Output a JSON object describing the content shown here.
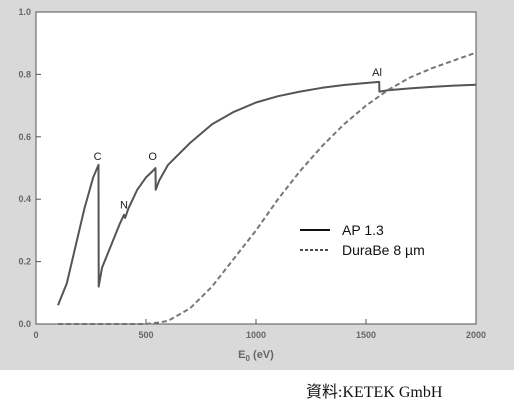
{
  "source_credit": "資料:KETEK GmbH",
  "chart_data": {
    "type": "line",
    "xlabel": "E",
    "xlabel_sub": "0",
    "xlabel_unit": " (eV)",
    "ylabel": "",
    "xlim": [
      0,
      2000
    ],
    "ylim": [
      0.0,
      1.0
    ],
    "x_ticks": [
      0,
      500,
      1000,
      1500,
      2000
    ],
    "x_tick_labels": [
      "0",
      "500",
      "1000",
      "1500",
      "2000"
    ],
    "y_ticks": [
      0.0,
      0.2,
      0.4,
      0.6,
      0.8,
      1.0
    ],
    "y_tick_labels": [
      "0.0",
      "0.2",
      "0.4",
      "0.6",
      "0.8",
      "1.0"
    ],
    "grid": false,
    "legend_position": "lower-right",
    "series": [
      {
        "name": "AP 1.3",
        "style": "solid",
        "color": "#555555",
        "x": [
          100,
          140,
          180,
          220,
          260,
          284,
          285,
          300,
          340,
          380,
          400,
          405,
          420,
          460,
          500,
          530,
          543,
          544,
          560,
          600,
          700,
          800,
          900,
          1000,
          1100,
          1200,
          1300,
          1400,
          1480,
          1560,
          1561,
          1600,
          1700,
          1800,
          1900,
          2000
        ],
        "y": [
          0.06,
          0.13,
          0.25,
          0.37,
          0.47,
          0.51,
          0.12,
          0.18,
          0.25,
          0.32,
          0.35,
          0.34,
          0.37,
          0.43,
          0.47,
          0.49,
          0.5,
          0.43,
          0.46,
          0.51,
          0.58,
          0.64,
          0.68,
          0.71,
          0.73,
          0.745,
          0.757,
          0.766,
          0.771,
          0.776,
          0.745,
          0.749,
          0.755,
          0.76,
          0.764,
          0.767
        ]
      },
      {
        "name": "DuraBe 8 µm",
        "style": "dashed",
        "color": "#777777",
        "x": [
          100,
          300,
          500,
          560,
          600,
          700,
          800,
          900,
          1000,
          1100,
          1200,
          1300,
          1400,
          1500,
          1600,
          1700,
          1800,
          1900,
          2000
        ],
        "y": [
          0.0,
          0.0,
          0.0,
          0.005,
          0.01,
          0.05,
          0.12,
          0.21,
          0.3,
          0.4,
          0.49,
          0.57,
          0.64,
          0.7,
          0.75,
          0.79,
          0.82,
          0.845,
          0.87
        ]
      }
    ],
    "annotations": [
      {
        "label": "C",
        "x": 280,
        "y": 0.525
      },
      {
        "label": "N",
        "x": 400,
        "y": 0.37
      },
      {
        "label": "O",
        "x": 530,
        "y": 0.525
      },
      {
        "label": "Al",
        "x": 1550,
        "y": 0.795
      }
    ]
  }
}
